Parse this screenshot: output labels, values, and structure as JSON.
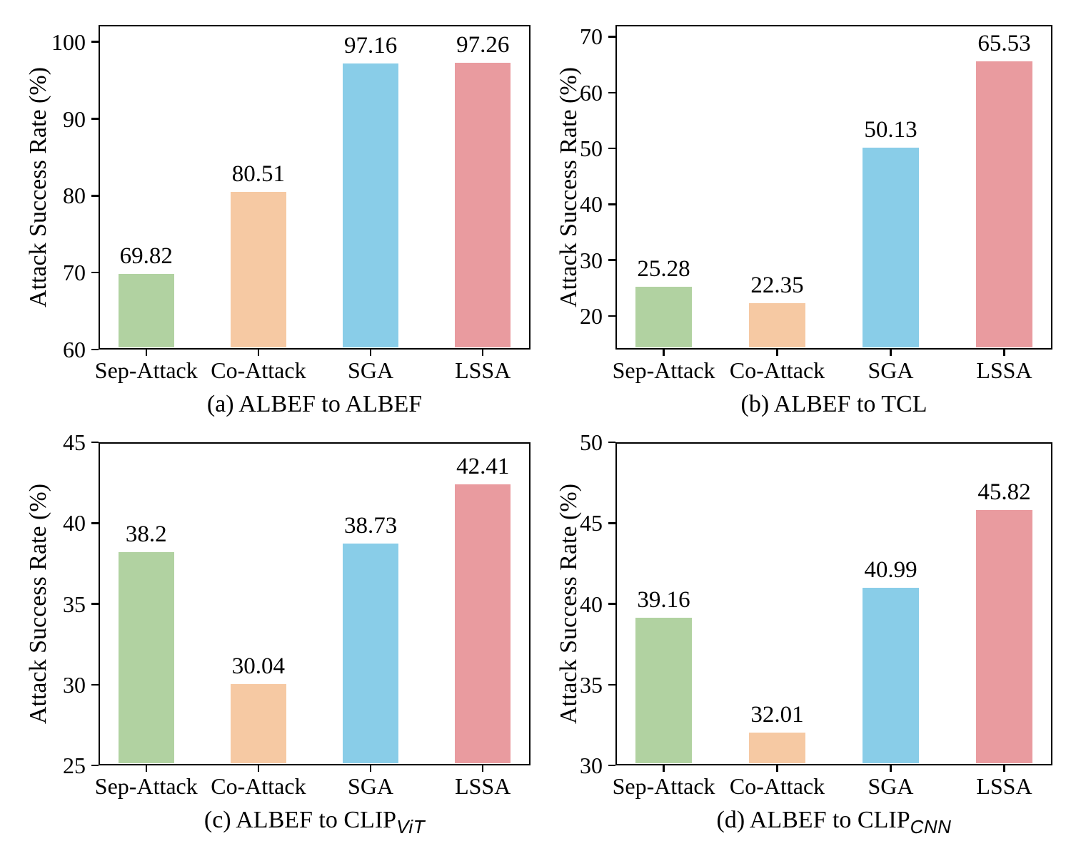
{
  "figure_title": "",
  "shared": {
    "ylabel": "Attack Success Rate (%)",
    "categories": [
      "Sep-Attack",
      "Co-Attack",
      "SGA",
      "LSSA"
    ],
    "bar_colors": [
      "#b1d2a1",
      "#f6c9a3",
      "#89cde8",
      "#e99b9f"
    ],
    "axis_color": "#000000",
    "background_color": "#ffffff"
  },
  "chart_data": [
    {
      "type": "bar",
      "title": "(a) ALBEF to ALBEF",
      "title_sub": "",
      "xlabel": "",
      "ylabel": "Attack Success Rate (%)",
      "categories": [
        "Sep-Attack",
        "Co-Attack",
        "SGA",
        "LSSA"
      ],
      "values": [
        69.82,
        80.51,
        97.16,
        97.26
      ],
      "value_labels": [
        "69.82",
        "80.51",
        "97.16",
        "97.26"
      ],
      "yticks": [
        60,
        70,
        80,
        90,
        100
      ],
      "ylim": [
        60,
        102.2
      ],
      "grid": false,
      "legend": "none"
    },
    {
      "type": "bar",
      "title": "(b) ALBEF to TCL",
      "title_sub": "",
      "xlabel": "",
      "ylabel": "Attack Success Rate (%)",
      "categories": [
        "Sep-Attack",
        "Co-Attack",
        "SGA",
        "LSSA"
      ],
      "values": [
        25.28,
        22.35,
        50.13,
        65.53
      ],
      "value_labels": [
        "25.28",
        "22.35",
        "50.13",
        "65.53"
      ],
      "yticks": [
        20,
        30,
        40,
        50,
        60,
        70
      ],
      "ylim": [
        14,
        72.1
      ],
      "grid": false,
      "legend": "none"
    },
    {
      "type": "bar",
      "title": "(c) ALBEF to CLIP",
      "title_sub": "ViT",
      "xlabel": "",
      "ylabel": "Attack Success Rate (%)",
      "categories": [
        "Sep-Attack",
        "Co-Attack",
        "SGA",
        "LSSA"
      ],
      "values": [
        38.2,
        30.04,
        38.73,
        42.41
      ],
      "value_labels": [
        "38.2",
        "30.04",
        "38.73",
        "42.41"
      ],
      "yticks": [
        25,
        30,
        35,
        40,
        45
      ],
      "ylim": [
        25,
        45
      ],
      "grid": false,
      "legend": "none"
    },
    {
      "type": "bar",
      "title": "(d) ALBEF to CLIP",
      "title_sub": "CNN",
      "xlabel": "",
      "ylabel": "Attack Success Rate (%)",
      "categories": [
        "Sep-Attack",
        "Co-Attack",
        "SGA",
        "LSSA"
      ],
      "values": [
        39.16,
        32.01,
        40.99,
        45.82
      ],
      "value_labels": [
        "39.16",
        "32.01",
        "40.99",
        "45.82"
      ],
      "yticks": [
        30,
        35,
        40,
        45,
        50
      ],
      "ylim": [
        30,
        50
      ],
      "grid": false,
      "legend": "none"
    }
  ]
}
